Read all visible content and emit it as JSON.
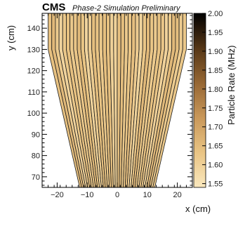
{
  "chart_data": {
    "type": "heatmap",
    "title": "CMS",
    "subtitle": "Phase-2 Simulation Preliminary",
    "xlabel": "x (cm)",
    "ylabel": "y (cm)",
    "zlabel": "Particle Rate (MHz)",
    "xlim": [
      -25,
      25
    ],
    "ylim": [
      65,
      147
    ],
    "zlim": [
      1.54,
      2.0
    ],
    "x_ticks": [
      -20,
      -10,
      0,
      10,
      20
    ],
    "y_ticks": [
      70,
      80,
      90,
      100,
      110,
      120,
      130,
      140
    ],
    "z_ticks": [
      1.55,
      1.6,
      1.65,
      1.7,
      1.75,
      1.8,
      1.85,
      1.9,
      1.95,
      2.0
    ],
    "z_tick_labels": [
      "1.55",
      "1.60",
      "1.65",
      "1.70",
      "1.75",
      "1.80",
      "1.85",
      "1.90",
      "1.95",
      "2.00"
    ],
    "x_tick_labels": [
      "−20",
      "−10",
      "0",
      "10",
      "20"
    ],
    "y_tick_labels": [
      "70",
      "80",
      "90",
      "100",
      "110",
      "120",
      "130",
      "140"
    ],
    "region": {
      "x_half_width_at_ymin": 12.5,
      "x_half_width_at_y130": 23.0,
      "y_bottom": 65,
      "y_shoulder": 130,
      "y_top": 147
    },
    "strip_count": 38,
    "value_range_shown": [
      1.59,
      1.66
    ]
  }
}
